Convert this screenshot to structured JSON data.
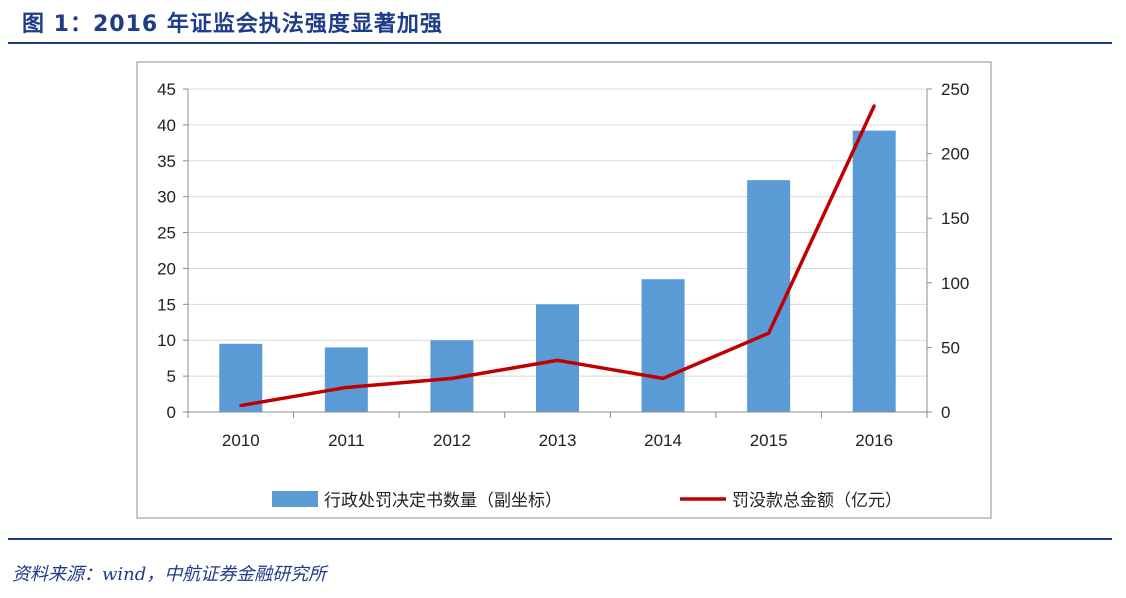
{
  "header": {
    "title": "图 1：2016 年证监会执法强度显著加强"
  },
  "footer": {
    "source": "资料来源：wind，中航证券金融研究所"
  },
  "colors": {
    "accent": "#1f3c88",
    "bar": "#5b9bd5",
    "line": "#c00000"
  },
  "chart_data": {
    "type": "bar",
    "categories": [
      "2010",
      "2011",
      "2012",
      "2013",
      "2014",
      "2015",
      "2016"
    ],
    "series": [
      {
        "name": "行政处罚决定书数量（副坐标）",
        "type": "bar",
        "axis": "left",
        "values": [
          9.5,
          9,
          10,
          15,
          18.5,
          32.3,
          39.2
        ]
      },
      {
        "name": "罚没款总金额（亿元）",
        "type": "line",
        "axis": "right",
        "values": [
          5,
          19,
          26,
          40,
          26,
          61,
          237
        ]
      }
    ],
    "left_axis": {
      "ylim": [
        0,
        45
      ],
      "ticks": [
        "0",
        "5",
        "10",
        "15",
        "20",
        "25",
        "30",
        "35",
        "40",
        "45"
      ]
    },
    "right_axis": {
      "ylim": [
        0,
        250
      ],
      "ticks": [
        "0",
        "50",
        "100",
        "150",
        "200",
        "250"
      ]
    },
    "grid": true,
    "legend": "bottom"
  }
}
